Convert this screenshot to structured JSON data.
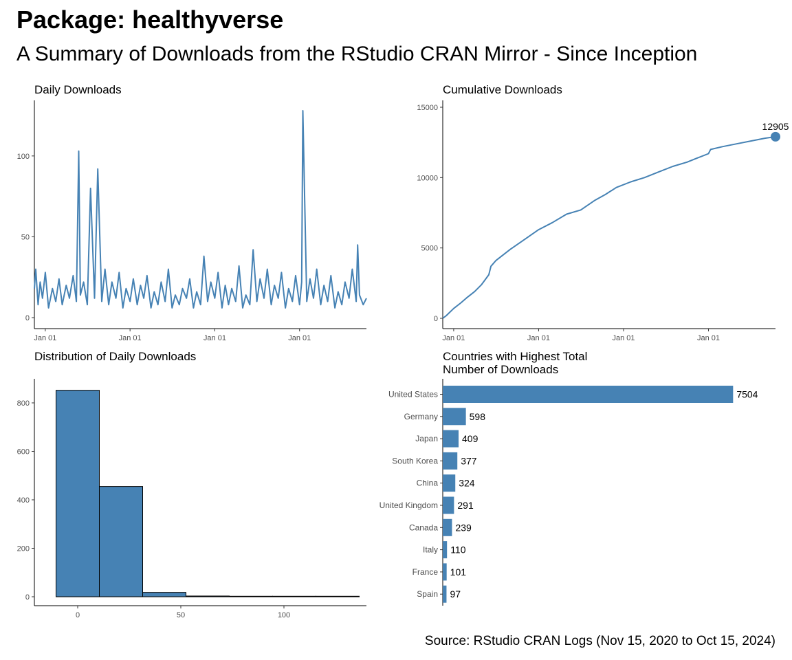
{
  "title": "Package: healthyverse",
  "subtitle": "A Summary of Downloads from the RStudio CRAN Mirror - Since Inception",
  "caption": "Source: RStudio CRAN Logs (Nov 15, 2020 to Oct 15, 2024)",
  "colors": {
    "accent": "#4682b4",
    "axis": "#000000",
    "tick_text": "#4d4d4d"
  },
  "chart_data": [
    {
      "type": "line",
      "title": "Daily Downloads",
      "xlabel": "",
      "ylabel": "",
      "x_ticks": [
        "Jan 01",
        "Jan 01",
        "Jan 01",
        "Jan 01"
      ],
      "x_tick_dates": [
        "2021-01-01",
        "2022-01-01",
        "2023-01-01",
        "2024-01-01"
      ],
      "xlim": [
        "2020-11-15",
        "2024-10-15"
      ],
      "y_ticks": [
        0,
        50,
        100
      ],
      "ylim": [
        0,
        128
      ],
      "series": [
        {
          "x": [
            "2020-11-15",
            "2020-11-21",
            "2020-12-01",
            "2020-12-10",
            "2020-12-20",
            "2021-01-01",
            "2021-01-15",
            "2021-02-01",
            "2021-02-15",
            "2021-03-01",
            "2021-03-15",
            "2021-04-01",
            "2021-04-15",
            "2021-05-01",
            "2021-05-15",
            "2021-05-25",
            "2021-06-01",
            "2021-06-15",
            "2021-07-01",
            "2021-07-15",
            "2021-08-01",
            "2021-08-15",
            "2021-09-01",
            "2021-09-15",
            "2021-10-01",
            "2021-10-15",
            "2021-11-01",
            "2021-11-15",
            "2021-12-01",
            "2021-12-15",
            "2022-01-01",
            "2022-01-15",
            "2022-02-01",
            "2022-02-15",
            "2022-03-01",
            "2022-03-15",
            "2022-04-01",
            "2022-04-15",
            "2022-05-01",
            "2022-05-15",
            "2022-06-01",
            "2022-06-15",
            "2022-07-01",
            "2022-07-15",
            "2022-08-01",
            "2022-08-15",
            "2022-09-01",
            "2022-09-15",
            "2022-10-01",
            "2022-10-15",
            "2022-11-01",
            "2022-11-15",
            "2022-12-01",
            "2022-12-15",
            "2023-01-01",
            "2023-01-15",
            "2023-02-01",
            "2023-02-15",
            "2023-03-01",
            "2023-03-15",
            "2023-04-01",
            "2023-04-15",
            "2023-05-01",
            "2023-05-15",
            "2023-06-01",
            "2023-06-15",
            "2023-07-01",
            "2023-07-15",
            "2023-08-01",
            "2023-08-15",
            "2023-09-01",
            "2023-09-15",
            "2023-10-01",
            "2023-10-15",
            "2023-11-01",
            "2023-11-15",
            "2023-12-01",
            "2023-12-15",
            "2024-01-01",
            "2024-01-10",
            "2024-01-15",
            "2024-02-01",
            "2024-02-15",
            "2024-03-01",
            "2024-03-15",
            "2024-04-01",
            "2024-04-15",
            "2024-05-01",
            "2024-05-15",
            "2024-06-01",
            "2024-06-15",
            "2024-07-01",
            "2024-07-15",
            "2024-08-01",
            "2024-08-15",
            "2024-09-01",
            "2024-09-07",
            "2024-09-15",
            "2024-10-01",
            "2024-10-15"
          ],
          "values": [
            18,
            30,
            8,
            22,
            12,
            28,
            6,
            18,
            10,
            24,
            8,
            20,
            12,
            26,
            10,
            103,
            14,
            22,
            8,
            80,
            12,
            92,
            10,
            30,
            8,
            22,
            12,
            28,
            6,
            18,
            10,
            24,
            8,
            20,
            12,
            26,
            6,
            16,
            8,
            22,
            10,
            30,
            6,
            14,
            8,
            18,
            12,
            24,
            6,
            16,
            8,
            38,
            10,
            22,
            12,
            28,
            6,
            20,
            8,
            18,
            10,
            32,
            6,
            14,
            8,
            42,
            10,
            24,
            12,
            30,
            8,
            20,
            12,
            28,
            6,
            18,
            10,
            26,
            8,
            22,
            128,
            10,
            24,
            12,
            30,
            8,
            20,
            10,
            26,
            6,
            16,
            8,
            22,
            12,
            30,
            10,
            45,
            14,
            8,
            12
          ]
        }
      ]
    },
    {
      "type": "line",
      "title": "Cumulative Downloads",
      "xlabel": "",
      "ylabel": "",
      "x_ticks": [
        "Jan 01",
        "Jan 01",
        "Jan 01",
        "Jan 01"
      ],
      "x_tick_dates": [
        "2021-01-01",
        "2022-01-01",
        "2023-01-01",
        "2024-01-01"
      ],
      "xlim": [
        "2020-11-15",
        "2024-10-15"
      ],
      "y_ticks": [
        0,
        5000,
        10000,
        15000
      ],
      "ylim": [
        0,
        15000
      ],
      "series": [
        {
          "x": [
            "2020-11-15",
            "2020-12-01",
            "2021-01-01",
            "2021-02-01",
            "2021-03-01",
            "2021-04-01",
            "2021-05-01",
            "2021-06-01",
            "2021-06-10",
            "2021-07-01",
            "2021-09-01",
            "2021-11-01",
            "2022-01-01",
            "2022-03-01",
            "2022-05-01",
            "2022-07-01",
            "2022-09-01",
            "2022-10-15",
            "2022-12-01",
            "2023-02-01",
            "2023-04-01",
            "2023-06-01",
            "2023-08-01",
            "2023-10-01",
            "2023-11-15",
            "2024-01-01",
            "2024-01-10",
            "2024-03-01",
            "2024-05-01",
            "2024-07-01",
            "2024-09-01",
            "2024-10-15"
          ],
          "values": [
            0,
            200,
            700,
            1100,
            1500,
            1900,
            2400,
            3100,
            3700,
            4100,
            4900,
            5600,
            6300,
            6800,
            7400,
            7700,
            8400,
            8800,
            9300,
            9700,
            10000,
            10400,
            10800,
            11100,
            11400,
            11700,
            12000,
            12200,
            12400,
            12600,
            12800,
            12905
          ]
        }
      ],
      "annotations": [
        {
          "x": "2024-10-15",
          "y": 12905,
          "label": "12905"
        }
      ]
    },
    {
      "type": "bar",
      "title": "Distribution of Daily Downloads",
      "xlabel": "",
      "ylabel": "",
      "x_ticks": [
        0,
        50,
        100
      ],
      "xlim": [
        -21,
        140
      ],
      "y_ticks": [
        0,
        200,
        400,
        600,
        800
      ],
      "ylim": [
        0,
        900
      ],
      "bins": [
        {
          "x0": -10.5,
          "x1": 10.5,
          "count": 852
        },
        {
          "x0": 10.5,
          "x1": 31.5,
          "count": 455
        },
        {
          "x0": 31.5,
          "x1": 52.5,
          "count": 18
        },
        {
          "x0": 52.5,
          "x1": 73.5,
          "count": 3
        },
        {
          "x0": 73.5,
          "x1": 94.5,
          "count": 2
        },
        {
          "x0": 94.5,
          "x1": 115.5,
          "count": 2
        },
        {
          "x0": 115.5,
          "x1": 136.5,
          "count": 2
        }
      ]
    },
    {
      "type": "bar",
      "orientation": "horizontal",
      "title": "Countries with Highest Total\nNumber of Downloads",
      "xlabel": "",
      "ylabel": "",
      "categories": [
        "United States",
        "Germany",
        "Japan",
        "South Korea",
        "China",
        "United Kingdom",
        "Canada",
        "Italy",
        "France",
        "Spain"
      ],
      "values": [
        7504,
        598,
        409,
        377,
        324,
        291,
        239,
        110,
        101,
        97
      ],
      "xlim": [
        0,
        8600
      ]
    }
  ]
}
